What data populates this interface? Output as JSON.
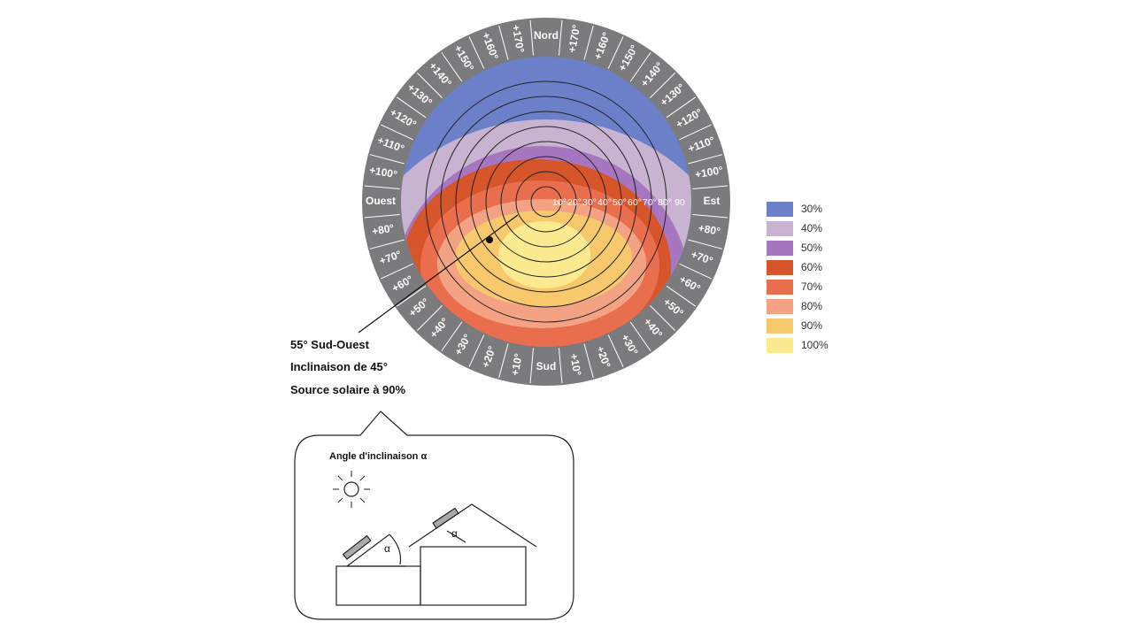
{
  "diagram": {
    "compass_labels": [
      "Nord",
      "+170°",
      "+160°",
      "+150°",
      "+140°",
      "+130°",
      "+120°",
      "+110°",
      "+100°",
      "Est",
      "+80°",
      "+70°",
      "+60°",
      "+50°",
      "+40°",
      "+30°",
      "+20°",
      "+10°",
      "Sud",
      "+10°",
      "+20°",
      "+30°",
      "+40°",
      "+50°",
      "+60°",
      "+70°",
      "+80°",
      "Ouest",
      "+100°",
      "+110°",
      "+120°",
      "+130°",
      "+140°",
      "+150°",
      "+160°",
      "+170°"
    ],
    "ring_labels": [
      "10°",
      "20°",
      "30°",
      "40°",
      "50°",
      "60°",
      "70°",
      "80°",
      "90"
    ],
    "legend": [
      {
        "label": "30%",
        "color": "#6b80c8"
      },
      {
        "label": "40%",
        "color": "#c8b4d0"
      },
      {
        "label": "50%",
        "color": "#a677c0"
      },
      {
        "label": "60%",
        "color": "#d6552a"
      },
      {
        "label": "70%",
        "color": "#e96e4d"
      },
      {
        "label": "80%",
        "color": "#f3a384"
      },
      {
        "label": "90%",
        "color": "#f8c86c"
      },
      {
        "label": "100%",
        "color": "#fbea90"
      }
    ],
    "annotation": [
      "55° Sud-Ouest",
      "Inclinaison de 45°",
      "Source solaire à 90%"
    ],
    "inset": {
      "title": "Angle d'inclinaison α",
      "alpha_left": "α",
      "alpha_right": "α"
    }
  }
}
